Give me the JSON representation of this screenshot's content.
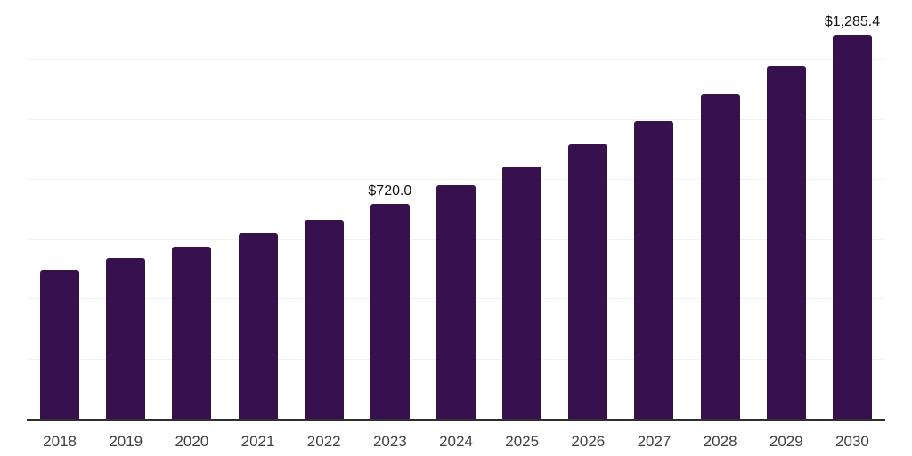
{
  "chart_data": {
    "type": "bar",
    "title": "",
    "xlabel": "",
    "ylabel": "",
    "categories": [
      "2018",
      "2019",
      "2020",
      "2021",
      "2022",
      "2023",
      "2024",
      "2025",
      "2026",
      "2027",
      "2028",
      "2029",
      "2030"
    ],
    "values": [
      500,
      537,
      576,
      621,
      667,
      720.0,
      781,
      845,
      918,
      997,
      1084,
      1181,
      1285.4
    ],
    "data_labels": [
      null,
      null,
      null,
      null,
      null,
      "$720.0",
      null,
      null,
      null,
      null,
      null,
      null,
      "$1,285.4"
    ],
    "ylim": [
      0,
      1400
    ],
    "gridlines": {
      "visible": true,
      "orientation": "horizontal",
      "step": 200
    },
    "legend_position": "none"
  },
  "colors": {
    "bar": "#36114d",
    "gridline": "#f2f2f2",
    "axis_line": "#2f2f2f",
    "tick_label": "#3f3f3f",
    "data_label": "#111111",
    "background": "#ffffff"
  }
}
